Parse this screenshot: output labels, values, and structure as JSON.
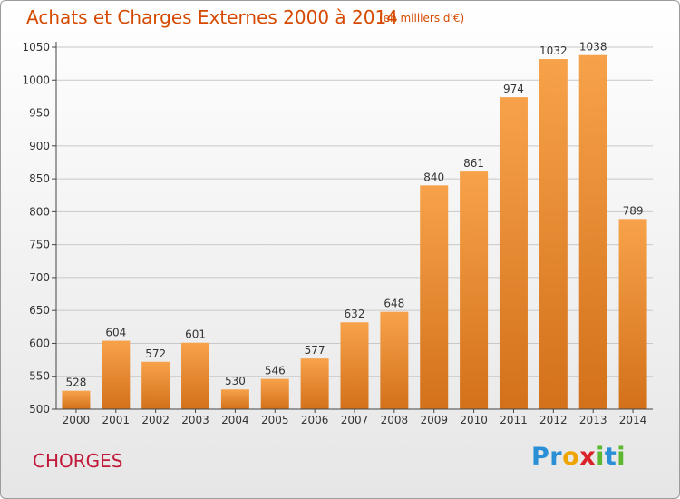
{
  "header": {
    "title": "Achats et Charges Externes 2000 à 2014",
    "unit": "(en milliers d'€)"
  },
  "footer": {
    "commune": "CHORGES",
    "logo": {
      "text": "Proxiti",
      "letters": [
        {
          "ch": "P",
          "color": "#2a8fd6"
        },
        {
          "ch": "r",
          "color": "#2a8fd6"
        },
        {
          "ch": "o",
          "color": "#f0a400"
        },
        {
          "ch": "x",
          "color": "#d9222a"
        },
        {
          "ch": "i",
          "color": "#5cb82f"
        },
        {
          "ch": "t",
          "color": "#2a8fd6"
        },
        {
          "ch": "i",
          "color": "#5cb82f"
        }
      ]
    }
  },
  "colors": {
    "bar_top": "#f7a24a",
    "bar_bottom": "#d3711a",
    "grid": "#c8c8c8",
    "axis": "#444444",
    "title": "#d54a00"
  },
  "chart_data": {
    "type": "bar",
    "categories": [
      "2000",
      "2001",
      "2002",
      "2003",
      "2004",
      "2005",
      "2006",
      "2007",
      "2008",
      "2009",
      "2010",
      "2011",
      "2012",
      "2013",
      "2014"
    ],
    "values": [
      528,
      604,
      572,
      601,
      530,
      546,
      577,
      632,
      648,
      840,
      861,
      974,
      1032,
      1038,
      789
    ],
    "ylim": [
      500,
      1050
    ],
    "yticks": [
      500,
      550,
      600,
      650,
      700,
      750,
      800,
      850,
      900,
      950,
      1000,
      1050
    ],
    "grid": true,
    "data_labels": true
  }
}
